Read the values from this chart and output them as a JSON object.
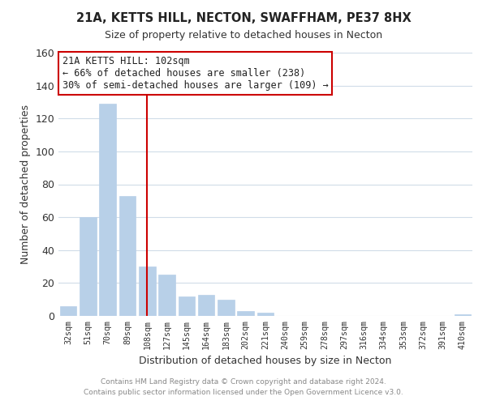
{
  "title": "21A, KETTS HILL, NECTON, SWAFFHAM, PE37 8HX",
  "subtitle": "Size of property relative to detached houses in Necton",
  "xlabel": "Distribution of detached houses by size in Necton",
  "ylabel": "Number of detached properties",
  "bar_color": "#b8d0e8",
  "bar_edge_color": "#b8d0e8",
  "grid_color": "#d0dce8",
  "vline_color": "#cc0000",
  "vline_x": 4,
  "annotation_line1": "21A KETTS HILL: 102sqm",
  "annotation_line2": "← 66% of detached houses are smaller (238)",
  "annotation_line3": "30% of semi-detached houses are larger (109) →",
  "annotation_box_color": "white",
  "annotation_box_edge_color": "#cc0000",
  "categories": [
    "32sqm",
    "51sqm",
    "70sqm",
    "89sqm",
    "108sqm",
    "127sqm",
    "145sqm",
    "164sqm",
    "183sqm",
    "202sqm",
    "221sqm",
    "240sqm",
    "259sqm",
    "278sqm",
    "297sqm",
    "316sqm",
    "334sqm",
    "353sqm",
    "372sqm",
    "391sqm",
    "410sqm"
  ],
  "values": [
    6,
    60,
    129,
    73,
    30,
    25,
    12,
    13,
    10,
    3,
    2,
    0,
    0,
    0,
    0,
    0,
    0,
    0,
    0,
    0,
    1
  ],
  "ylim": [
    0,
    160
  ],
  "yticks": [
    0,
    20,
    40,
    60,
    80,
    100,
    120,
    140,
    160
  ],
  "footer_line1": "Contains HM Land Registry data © Crown copyright and database right 2024.",
  "footer_line2": "Contains public sector information licensed under the Open Government Licence v3.0.",
  "bg_color": "#ffffff",
  "plot_bg_color": "#ffffff"
}
